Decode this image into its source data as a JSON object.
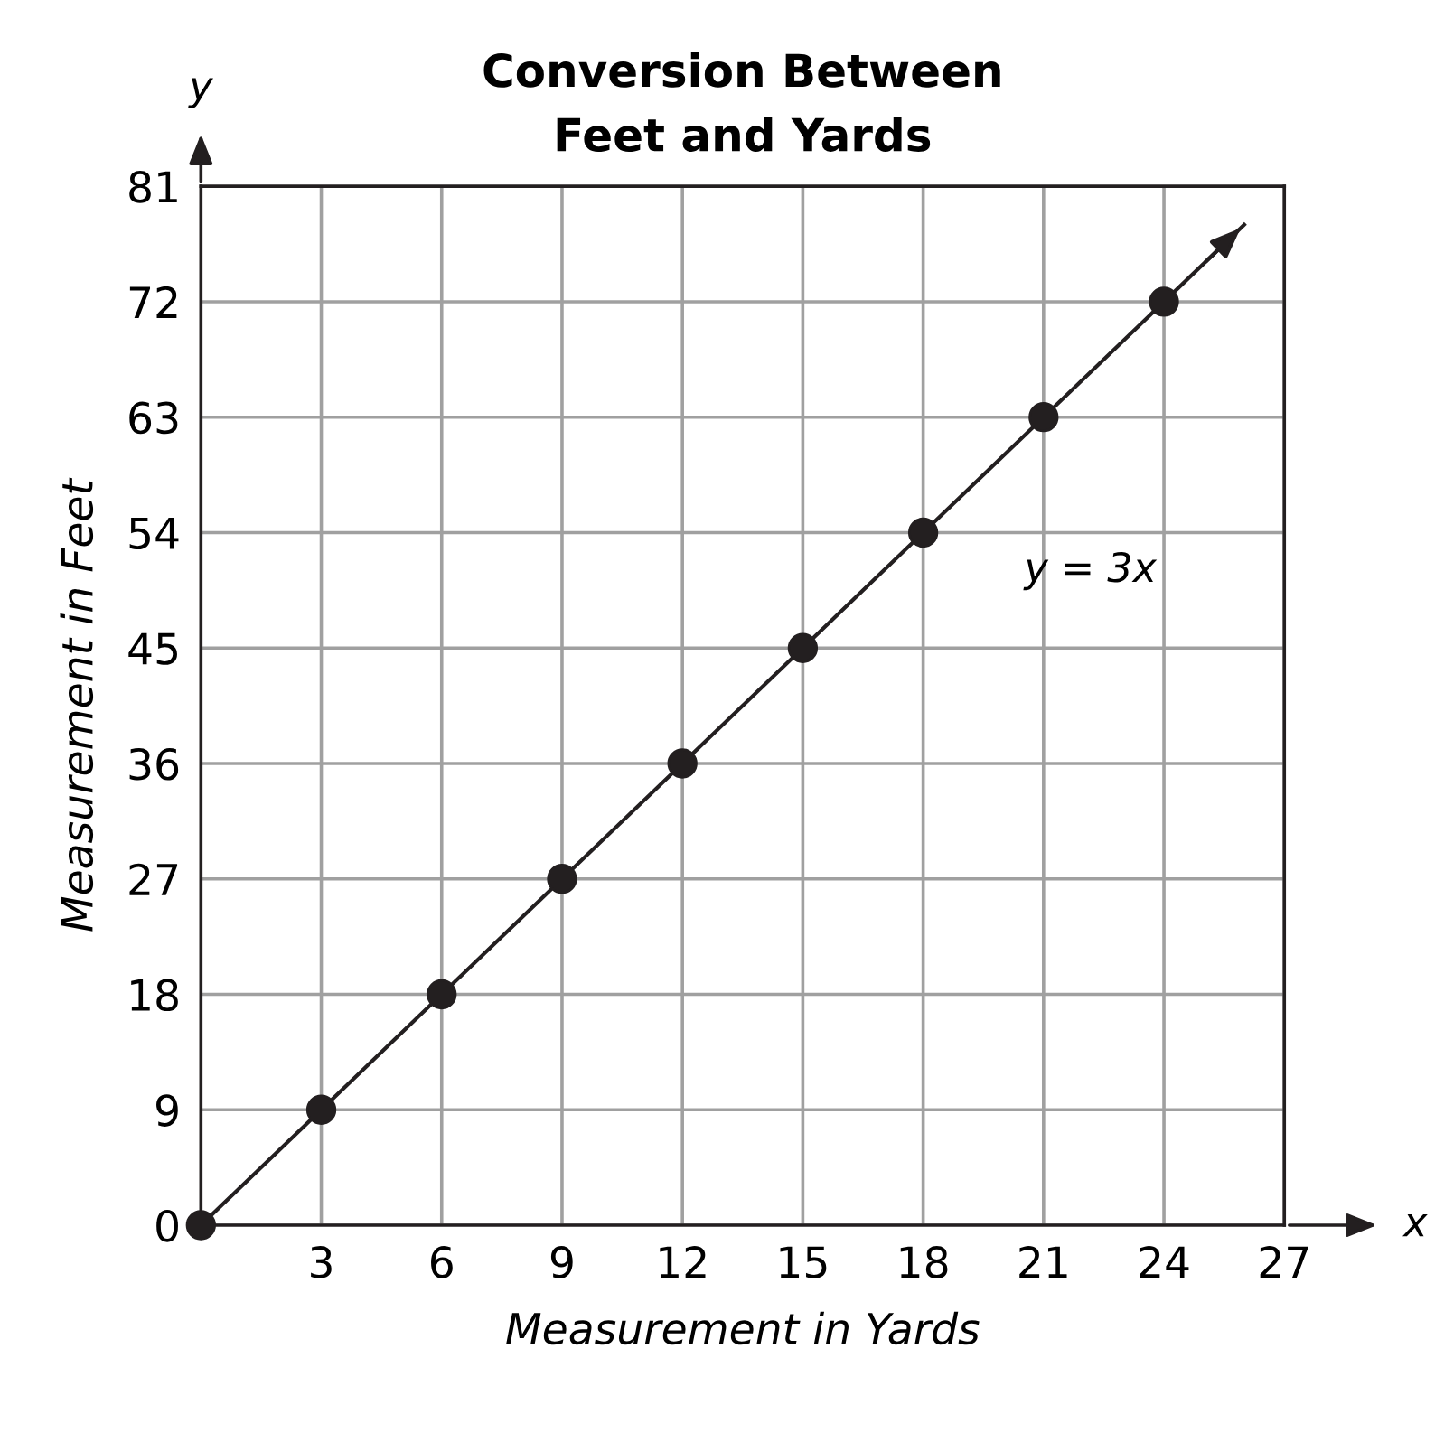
{
  "chart_data": {
    "type": "scatter",
    "title": "Conversion Between\nFeet and Yards",
    "xlabel": "Measurement in Yards",
    "ylabel": "Measurement in Feet",
    "xlim": [
      0,
      27
    ],
    "ylim": [
      0,
      81
    ],
    "xticks": [
      3,
      6,
      9,
      12,
      15,
      18,
      21,
      24,
      27
    ],
    "yticks": [
      0,
      9,
      18,
      27,
      36,
      45,
      54,
      63,
      72,
      81
    ],
    "grid": true,
    "marker": "circle",
    "series": [
      {
        "type": "line",
        "color": "#231f20",
        "x": [
          0,
          26
        ],
        "values": [
          0,
          78
        ],
        "marker": "none"
      },
      {
        "color": "#231f20",
        "x": [
          0,
          3,
          6,
          9,
          12,
          15,
          18,
          21,
          24
        ],
        "values": [
          0,
          9,
          18,
          27,
          36,
          45,
          54,
          63,
          72
        ]
      }
    ],
    "annotations": [
      "y = 3x",
      "x",
      "y"
    ]
  }
}
